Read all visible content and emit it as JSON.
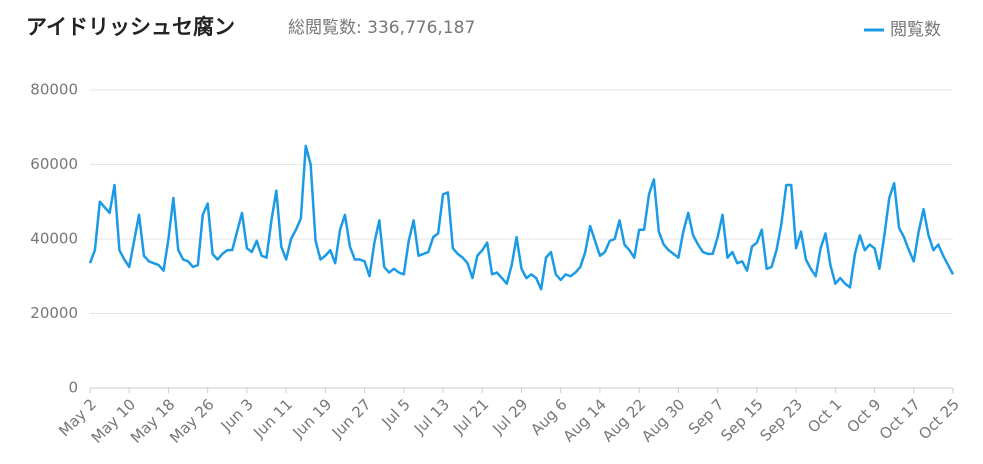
{
  "chart_data": {
    "type": "line",
    "title": "アイドリッシュセ腐ン",
    "subtitle": "総閲覧数: 336,776,187",
    "categories": [
      "May 2",
      null,
      null,
      null,
      null,
      null,
      null,
      null,
      "May 10",
      null,
      null,
      null,
      null,
      null,
      null,
      null,
      "May 18",
      null,
      null,
      null,
      null,
      null,
      null,
      null,
      "May 26",
      null,
      null,
      null,
      null,
      null,
      null,
      null,
      "Jun 3",
      null,
      null,
      null,
      null,
      null,
      null,
      null,
      "Jun 11",
      null,
      null,
      null,
      null,
      null,
      null,
      null,
      "Jun 19",
      null,
      null,
      null,
      null,
      null,
      null,
      null,
      "Jun 27",
      null,
      null,
      null,
      null,
      null,
      null,
      null,
      "Jul 5",
      null,
      null,
      null,
      null,
      null,
      null,
      null,
      "Jul 13",
      null,
      null,
      null,
      null,
      null,
      null,
      null,
      "Jul 21",
      null,
      null,
      null,
      null,
      null,
      null,
      null,
      "Jul 29",
      null,
      null,
      null,
      null,
      null,
      null,
      null,
      "Aug 6",
      null,
      null,
      null,
      null,
      null,
      null,
      null,
      "Aug 14",
      null,
      null,
      null,
      null,
      null,
      null,
      null,
      "Aug 22",
      null,
      null,
      null,
      null,
      null,
      null,
      null,
      "Aug 30",
      null,
      null,
      null,
      null,
      null,
      null,
      null,
      "Sep 7",
      null,
      null,
      null,
      null,
      null,
      null,
      null,
      "Sep 15",
      null,
      null,
      null,
      null,
      null,
      null,
      null,
      "Sep 23",
      null,
      null,
      null,
      null,
      null,
      null,
      null,
      "Oct 1",
      null,
      null,
      null,
      null,
      null,
      null,
      null,
      "Oct 9",
      null,
      null,
      null,
      null,
      null,
      null,
      null,
      "Oct 17",
      null,
      null,
      null,
      null,
      null,
      null,
      null,
      "Oct 25"
    ],
    "series": [
      {
        "name": "閲覧数",
        "color": "#1b9ae6",
        "values": [
          33500,
          37000,
          50000,
          48500,
          47000,
          54500,
          37000,
          34500,
          32500,
          39500,
          46500,
          35500,
          34000,
          33500,
          33000,
          31500,
          40000,
          51000,
          37000,
          34500,
          34000,
          32500,
          33000,
          46500,
          49500,
          36000,
          34500,
          36000,
          37000,
          37000,
          42000,
          47000,
          37500,
          36500,
          39500,
          35500,
          35000,
          45000,
          53000,
          38000,
          34500,
          40000,
          42500,
          45500,
          65000,
          60000,
          39500,
          34500,
          35500,
          37000,
          33500,
          42500,
          46500,
          38000,
          34500,
          34500,
          34000,
          30000,
          39000,
          45000,
          32500,
          31000,
          32000,
          31000,
          30500,
          39500,
          45000,
          35500,
          36000,
          36500,
          40500,
          41500,
          52000,
          52500,
          37500,
          36000,
          35000,
          33500,
          29500,
          35500,
          37000,
          39000,
          30500,
          31000,
          29500,
          28000,
          33000,
          40500,
          32000,
          29500,
          30500,
          29500,
          26500,
          35000,
          36500,
          30500,
          29000,
          30500,
          30000,
          31000,
          32500,
          36500,
          43500,
          39500,
          35500,
          36500,
          39500,
          40000,
          45000,
          38500,
          37000,
          35000,
          42500,
          42500,
          52000,
          56000,
          42000,
          38500,
          37000,
          36000,
          35000,
          42000,
          47000,
          41000,
          38500,
          36500,
          36000,
          36000,
          40500,
          46500,
          35000,
          36500,
          33500,
          34000,
          31500,
          38000,
          39000,
          42500,
          32000,
          32500,
          37000,
          44000,
          54500,
          54500,
          37500,
          42000,
          34500,
          32000,
          30000,
          37500,
          41500,
          33000,
          28000,
          29500,
          28000,
          27000,
          36000,
          41000,
          37000,
          38500,
          37500,
          32000,
          41000,
          51000,
          55000,
          43000,
          40500,
          37000,
          34000,
          42000,
          48000,
          41000,
          37000,
          38500,
          35500,
          33000,
          30500
        ]
      }
    ],
    "ylim": [
      0,
      80000
    ],
    "yticks": [
      0,
      20000,
      40000,
      60000,
      80000
    ],
    "grid": true,
    "legend": "top-right"
  }
}
